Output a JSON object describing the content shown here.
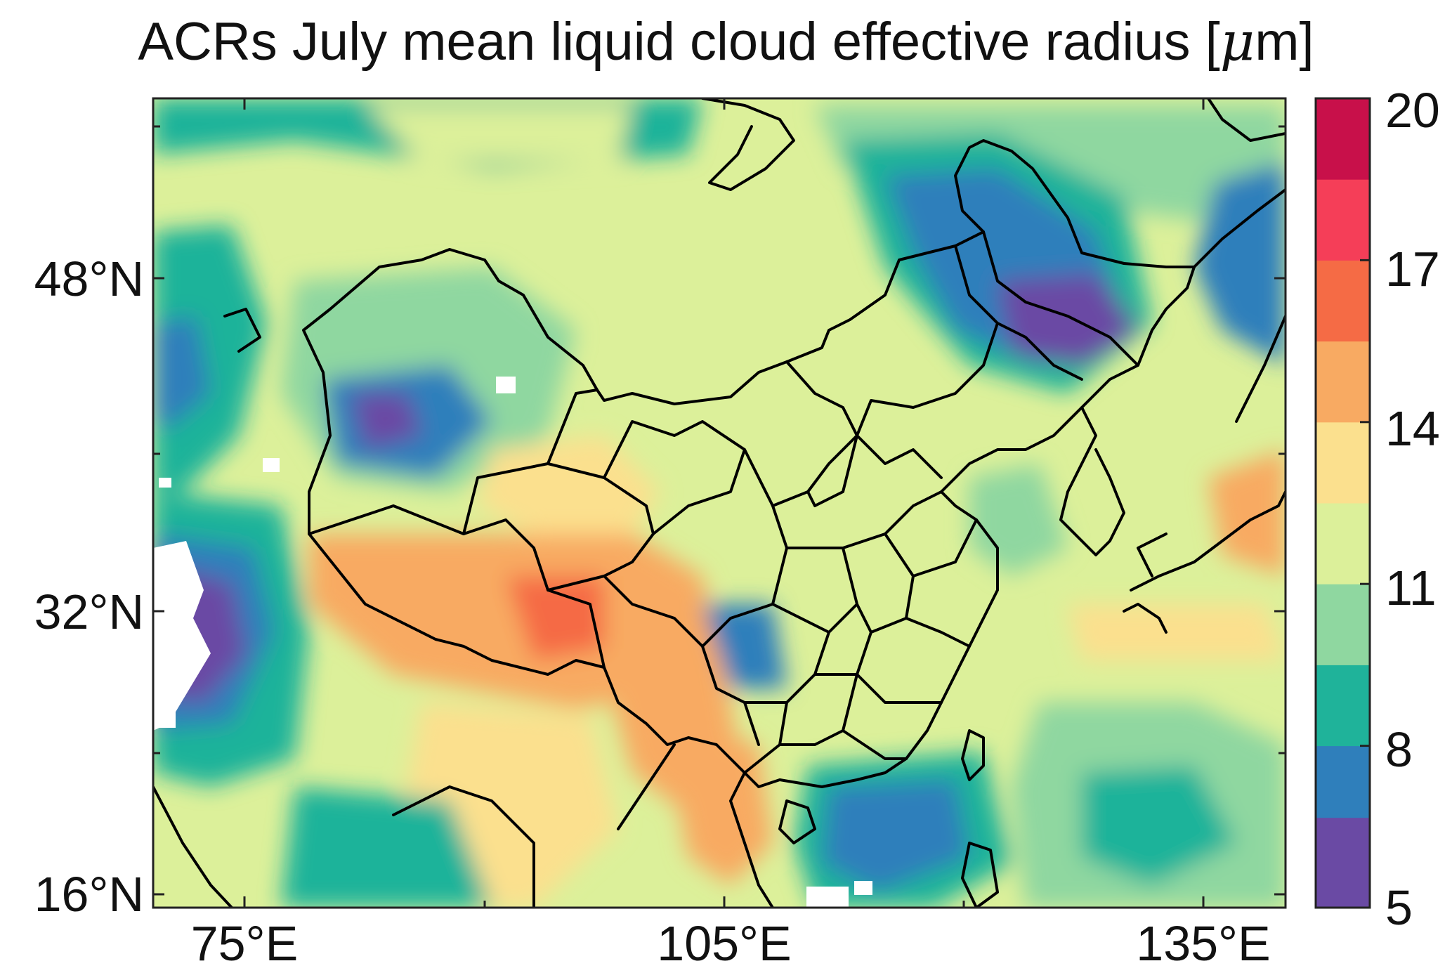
{
  "title": "ACRs July mean liquid cloud effective radius [",
  "title_unit_symbol": "μ",
  "title_unit_rest": "m]",
  "map": {
    "region": "China and surrounding East Asia",
    "lon_range": [
      68,
      142
    ],
    "lat_range": [
      15,
      53
    ],
    "lat_ticks": [
      {
        "value": 16,
        "label": "16°N"
      },
      {
        "value": 32,
        "label": "32°N"
      },
      {
        "value": 48,
        "label": "48°N"
      }
    ],
    "lon_ticks": [
      {
        "value": 75,
        "label": "75°E"
      },
      {
        "value": 105,
        "label": "105°E"
      },
      {
        "value": 135,
        "label": "135°E"
      }
    ]
  },
  "colorbar": {
    "levels": [
      5,
      6.67,
      8,
      9.5,
      11,
      12.5,
      14,
      15.5,
      17,
      18.5,
      20
    ],
    "labels": [
      {
        "value": 5,
        "label": "5"
      },
      {
        "value": 8,
        "label": "8"
      },
      {
        "value": 11,
        "label": "11"
      },
      {
        "value": 14,
        "label": "14"
      },
      {
        "value": 17,
        "label": "17"
      },
      {
        "value": 20,
        "label": "20"
      }
    ],
    "colors": [
      "#6a4aa4",
      "#2f7fbb",
      "#1fb39a",
      "#8fd7a0",
      "#dcf09a",
      "#fbe08e",
      "#f8aa62",
      "#f56b45",
      "#f53e58",
      "#c8104a"
    ]
  }
}
